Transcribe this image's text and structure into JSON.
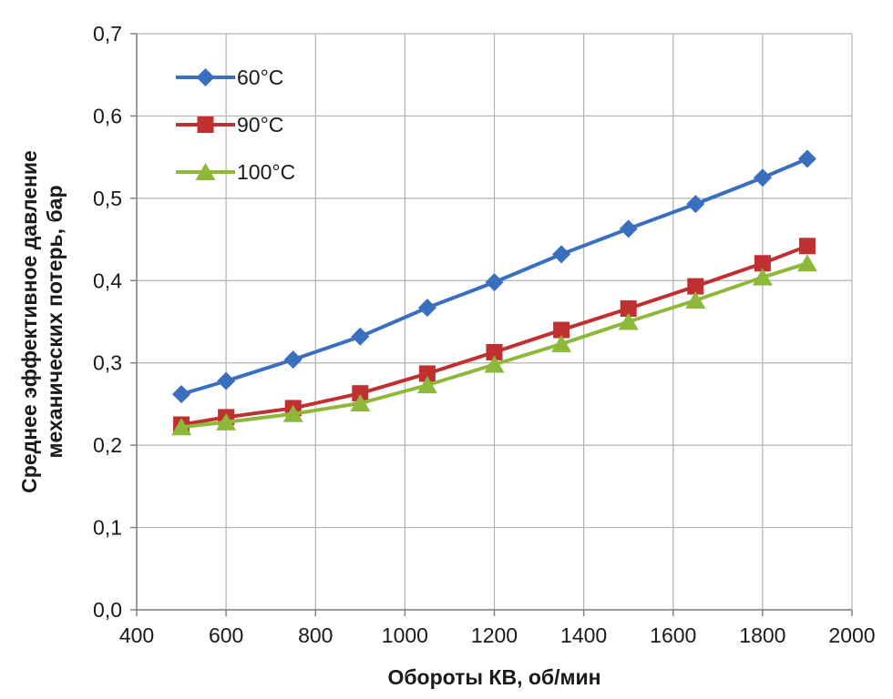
{
  "chart_data": {
    "type": "line",
    "title": "",
    "xlabel": "Обороты КВ, об/мин",
    "ylabel_lines": [
      "Среднее эффективное давление",
      "механических потерь, бар"
    ],
    "xlim": [
      400,
      2000
    ],
    "ylim": [
      0.0,
      0.7
    ],
    "grid": true,
    "legend_position": "top-left",
    "x_ticks": [
      400,
      600,
      800,
      1000,
      1200,
      1400,
      1600,
      1800,
      2000
    ],
    "x_tick_labels": [
      "400",
      "600",
      "800",
      "1000",
      "1200",
      "1400",
      "1600",
      "1800",
      "2000"
    ],
    "y_ticks": [
      0.0,
      0.1,
      0.2,
      0.3,
      0.4,
      0.5,
      0.6,
      0.7
    ],
    "y_tick_labels": [
      "0,0",
      "0,1",
      "0,2",
      "0,3",
      "0,4",
      "0,5",
      "0,6",
      "0,7"
    ],
    "x": [
      500,
      600,
      750,
      900,
      1050,
      1200,
      1350,
      1500,
      1650,
      1800,
      1900
    ],
    "series": [
      {
        "name": "60°C",
        "color": "#3a6fc0",
        "marker": "diamond",
        "values": [
          0.262,
          0.278,
          0.304,
          0.332,
          0.367,
          0.398,
          0.432,
          0.463,
          0.493,
          0.525,
          0.548
        ]
      },
      {
        "name": "90°C",
        "color": "#c03030",
        "marker": "square",
        "values": [
          0.225,
          0.234,
          0.245,
          0.263,
          0.287,
          0.313,
          0.34,
          0.366,
          0.393,
          0.421,
          0.442
        ]
      },
      {
        "name": "100°C",
        "color": "#8db83a",
        "marker": "triangle",
        "values": [
          0.222,
          0.228,
          0.238,
          0.251,
          0.273,
          0.298,
          0.323,
          0.35,
          0.376,
          0.404,
          0.421
        ]
      }
    ]
  }
}
